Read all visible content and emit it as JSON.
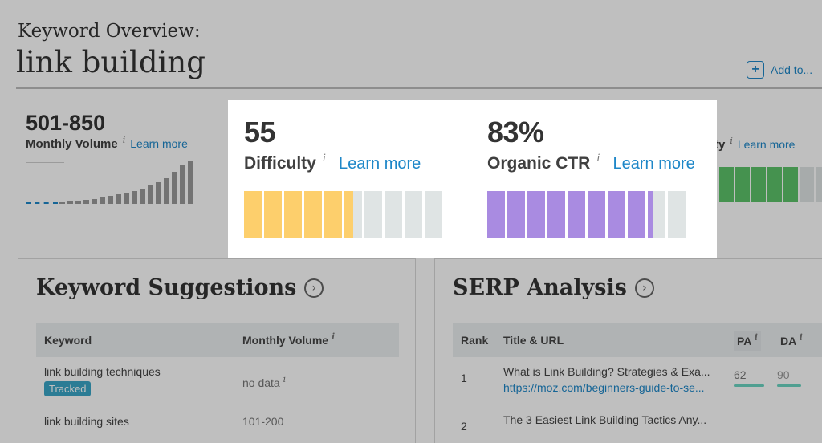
{
  "page": {
    "heading": "Keyword Overview:",
    "keyword": "link building",
    "add_to_label": "Add to..."
  },
  "metrics": {
    "volume": {
      "value": "501-850",
      "label": "Monthly Volume",
      "info": "i",
      "learn_more": "Learn more"
    },
    "priority": {
      "label_fragment": "ty",
      "learn_more": "Learn more"
    },
    "difficulty": {
      "value": "55",
      "label": "Difficulty",
      "info": "i",
      "learn_more": "Learn more",
      "fraction": 0.55,
      "color": "#fdcf6c"
    },
    "ctr": {
      "value": "83%",
      "label": "Organic CTR",
      "info": "i",
      "learn_more": "Learn more",
      "fraction": 0.83,
      "color": "#a98be1"
    }
  },
  "volume_chart": {
    "bar_levels": [
      0.04,
      0.06,
      0.08,
      0.1,
      0.12,
      0.15,
      0.18,
      0.22,
      0.26,
      0.3,
      0.36,
      0.42,
      0.5,
      0.6,
      0.75,
      0.9,
      1.0
    ]
  },
  "priority_bars": {
    "fraction": 0.45,
    "color": "#5cc36a"
  },
  "keyword_suggestions": {
    "title": "Keyword Suggestions",
    "columns": [
      "Keyword",
      "Monthly Volume"
    ],
    "rows": [
      {
        "keyword": "link building techniques",
        "badge": "Tracked",
        "volume": "no data"
      },
      {
        "keyword": "link building sites",
        "badge": "",
        "volume": "101-200"
      }
    ]
  },
  "serp_analysis": {
    "title": "SERP Analysis",
    "columns": [
      "Rank",
      "Title & URL",
      "PA",
      "DA"
    ],
    "rows": [
      {
        "rank": "1",
        "title": "What is Link Building? Strategies & Exa...",
        "url": "https://moz.com/beginners-guide-to-se...",
        "pa": "62",
        "da": "90"
      },
      {
        "rank": "2",
        "title": "The 3 Easiest Link Building Tactics Any...",
        "url": "",
        "pa": "",
        "da": ""
      }
    ]
  },
  "colors": {
    "accent_link": "#1e87c8",
    "overlay": "rgba(0,0,0,0.25)"
  }
}
